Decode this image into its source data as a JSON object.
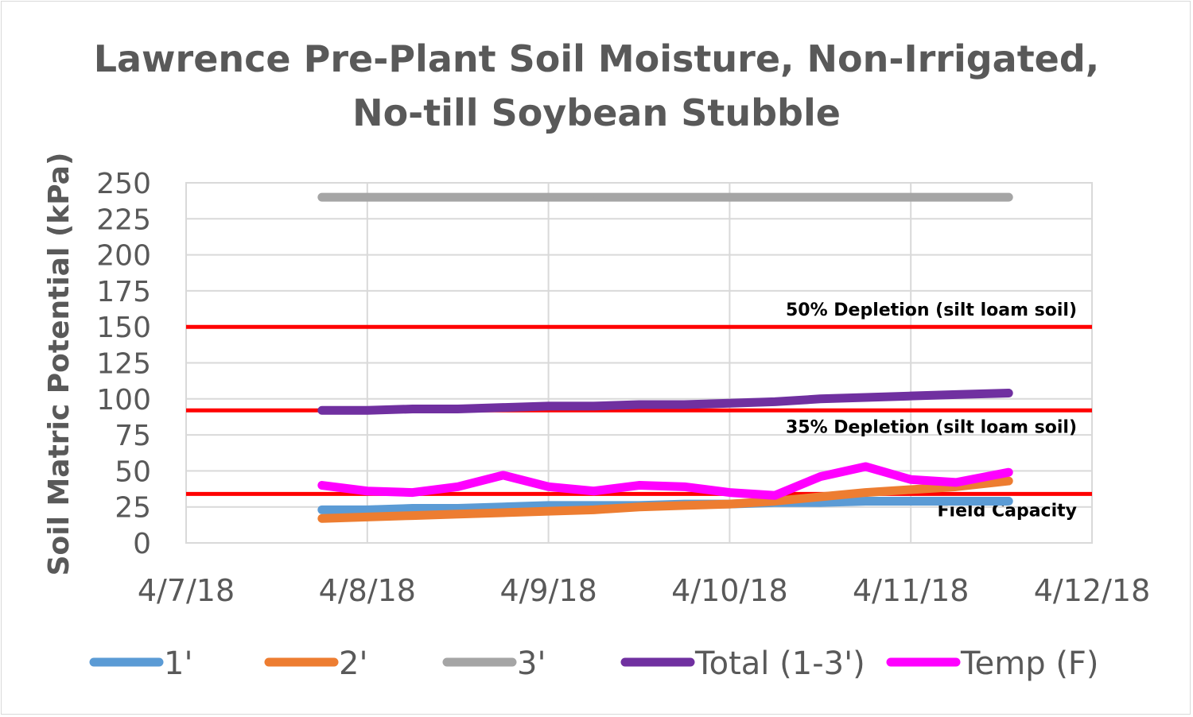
{
  "chart_data": {
    "type": "line",
    "title": [
      "Lawrence Pre-Plant Soil Moisture, Non-Irrigated,",
      "No-till Soybean Stubble"
    ],
    "xlabel": "",
    "ylabel": "Soil Matric Potential (kPa)",
    "x_unit": "days since 4/7/18",
    "xlim": [
      0,
      5
    ],
    "ylim": [
      0,
      250
    ],
    "x_ticks": [
      0,
      1,
      2,
      3,
      4,
      5
    ],
    "x_tick_labels": [
      "4/7/18",
      "4/8/18",
      "4/9/18",
      "4/10/18",
      "4/11/18",
      "4/12/18"
    ],
    "y_ticks": [
      0,
      25,
      50,
      75,
      100,
      125,
      150,
      175,
      200,
      225,
      250
    ],
    "y_tick_labels": [
      "0",
      "25",
      "50",
      "75",
      "100",
      "125",
      "150",
      "175",
      "200",
      "225",
      "250"
    ],
    "grid": true,
    "legend_position": "bottom",
    "x": [
      0.75,
      1.0,
      1.25,
      1.5,
      1.75,
      2.0,
      2.25,
      2.5,
      2.75,
      3.0,
      3.25,
      3.5,
      3.75,
      4.0,
      4.25,
      4.54
    ],
    "series": [
      {
        "name": "1'",
        "color": "#5b9bd5",
        "values": [
          23,
          23,
          24,
          24,
          25,
          26,
          26,
          26,
          27,
          27,
          28,
          28,
          29,
          29,
          29,
          29
        ]
      },
      {
        "name": "2'",
        "color": "#ed7d31",
        "values": [
          17,
          18,
          19,
          20,
          21,
          22,
          23,
          25,
          26,
          27,
          29,
          32,
          35,
          37,
          39,
          43
        ]
      },
      {
        "name": "3'",
        "color": "#a5a5a5",
        "values": [
          240,
          240,
          240,
          240,
          240,
          240,
          240,
          240,
          240,
          240,
          240,
          240,
          240,
          240,
          240,
          240
        ]
      },
      {
        "name": "Total (1-3')",
        "color": "#7030a0",
        "values": [
          92,
          92,
          93,
          93,
          94,
          95,
          95,
          96,
          96,
          97,
          98,
          100,
          101,
          102,
          103,
          104
        ]
      },
      {
        "name": "Temp (F)",
        "color": "#ff00ff",
        "values": [
          40,
          36,
          35,
          39,
          47,
          39,
          36,
          40,
          39,
          35,
          33,
          46,
          53,
          44,
          42,
          49
        ]
      }
    ],
    "reference_lines": [
      {
        "value": 150,
        "label": "50% Depletion (silt loam soil)",
        "color": "#ff0000",
        "label_position": "above"
      },
      {
        "value": 92,
        "label": "35% Depletion (silt loam soil)",
        "color": "#ff0000",
        "label_position": "below"
      },
      {
        "value": 34,
        "label": "Field Capacity",
        "color": "#ff0000",
        "label_position": "below"
      }
    ]
  }
}
